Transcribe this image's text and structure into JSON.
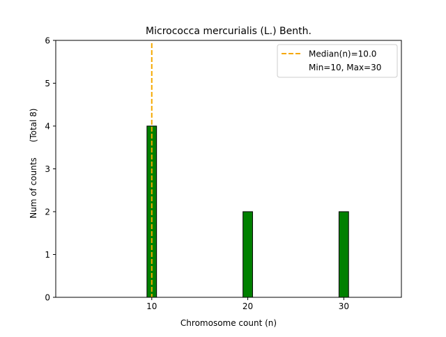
{
  "chart_data": {
    "type": "bar",
    "title": "Micrococca mercurialis (L.) Benth.",
    "xlabel": "Chromosome count (n)",
    "ylabel": "Num of counts",
    "ylabel_total": "(Total 8)",
    "xlim": [
      0,
      36
    ],
    "ylim": [
      0,
      6
    ],
    "xticks": [
      10,
      20,
      30
    ],
    "yticks": [
      0,
      1,
      2,
      3,
      4,
      5,
      6
    ],
    "bar_width": 1,
    "bars": [
      {
        "x": 10,
        "value": 4
      },
      {
        "x": 20,
        "value": 2
      },
      {
        "x": 30,
        "value": 2
      }
    ],
    "baseline_end": 33.5,
    "median": 10.0,
    "bar_color": "#008000",
    "bar_edge_color": "#000000",
    "median_color": "#f5a800",
    "legend_position": "top-right",
    "legend": {
      "median_label": "Median(n)=10.0",
      "range_label": "Min=10, Max=30"
    }
  }
}
